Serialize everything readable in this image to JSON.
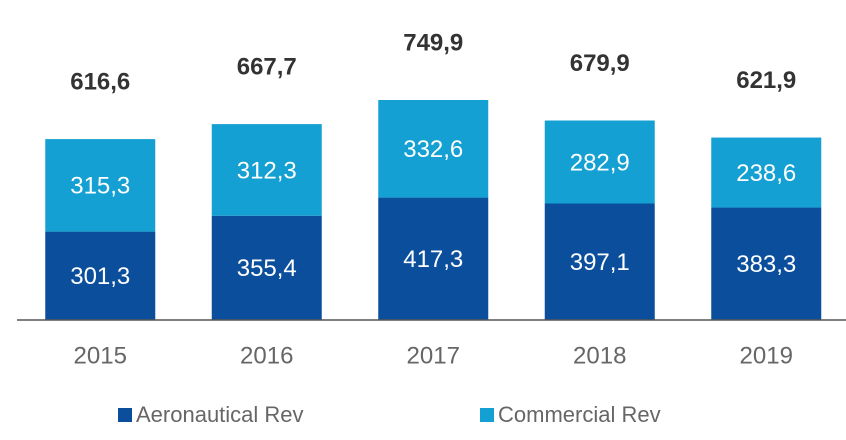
{
  "chart_data": {
    "type": "stacked_bar",
    "categories": [
      "2015",
      "2016",
      "2017",
      "2018",
      "2019"
    ],
    "series": [
      {
        "name": "Aeronautical Rev",
        "color": "#0b4f9c",
        "values": [
          301.3,
          355.4,
          417.3,
          397.1,
          383.3
        ],
        "value_labels": [
          "301,3",
          "355,4",
          "417,3",
          "397,1",
          "383,3"
        ]
      },
      {
        "name": "Commercial Rev",
        "color": "#14a0d2",
        "values": [
          315.3,
          312.3,
          332.6,
          282.9,
          238.6
        ],
        "value_labels": [
          "315,3",
          "312,3",
          "332,6",
          "282,9",
          "238,6"
        ]
      }
    ],
    "totals": [
      616.6,
      667.7,
      749.9,
      679.9,
      621.9
    ],
    "total_labels": [
      "616,6",
      "667,7",
      "749,9",
      "679,9",
      "621,9"
    ],
    "legend": "bottom"
  }
}
